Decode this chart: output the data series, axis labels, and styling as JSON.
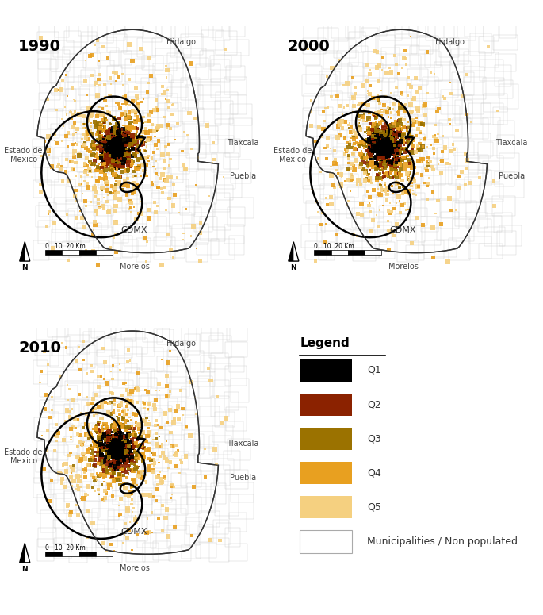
{
  "fig_bg": "#ffffff",
  "map_bg": "#b8b8b8",
  "metro_fill": "#ffffff",
  "metro_edge": "#333333",
  "muni_edge": "#cccccc",
  "cdmx_edge": "#000000",
  "years": [
    "1990",
    "2000",
    "2010"
  ],
  "colors": {
    "Q1": "#000000",
    "Q2": "#8b2200",
    "Q3": "#9b7200",
    "Q4": "#e8a020",
    "Q5": "#f5d080"
  },
  "muni_fill": "#ffffff",
  "legend_title": "Legend",
  "legend_items": [
    "Q1",
    "Q2",
    "Q3",
    "Q4",
    "Q5",
    "Municipalities / Non populated"
  ],
  "label_fontsize": 7,
  "year_fontsize": 14,
  "legend_title_fontsize": 11,
  "legend_item_fontsize": 9
}
